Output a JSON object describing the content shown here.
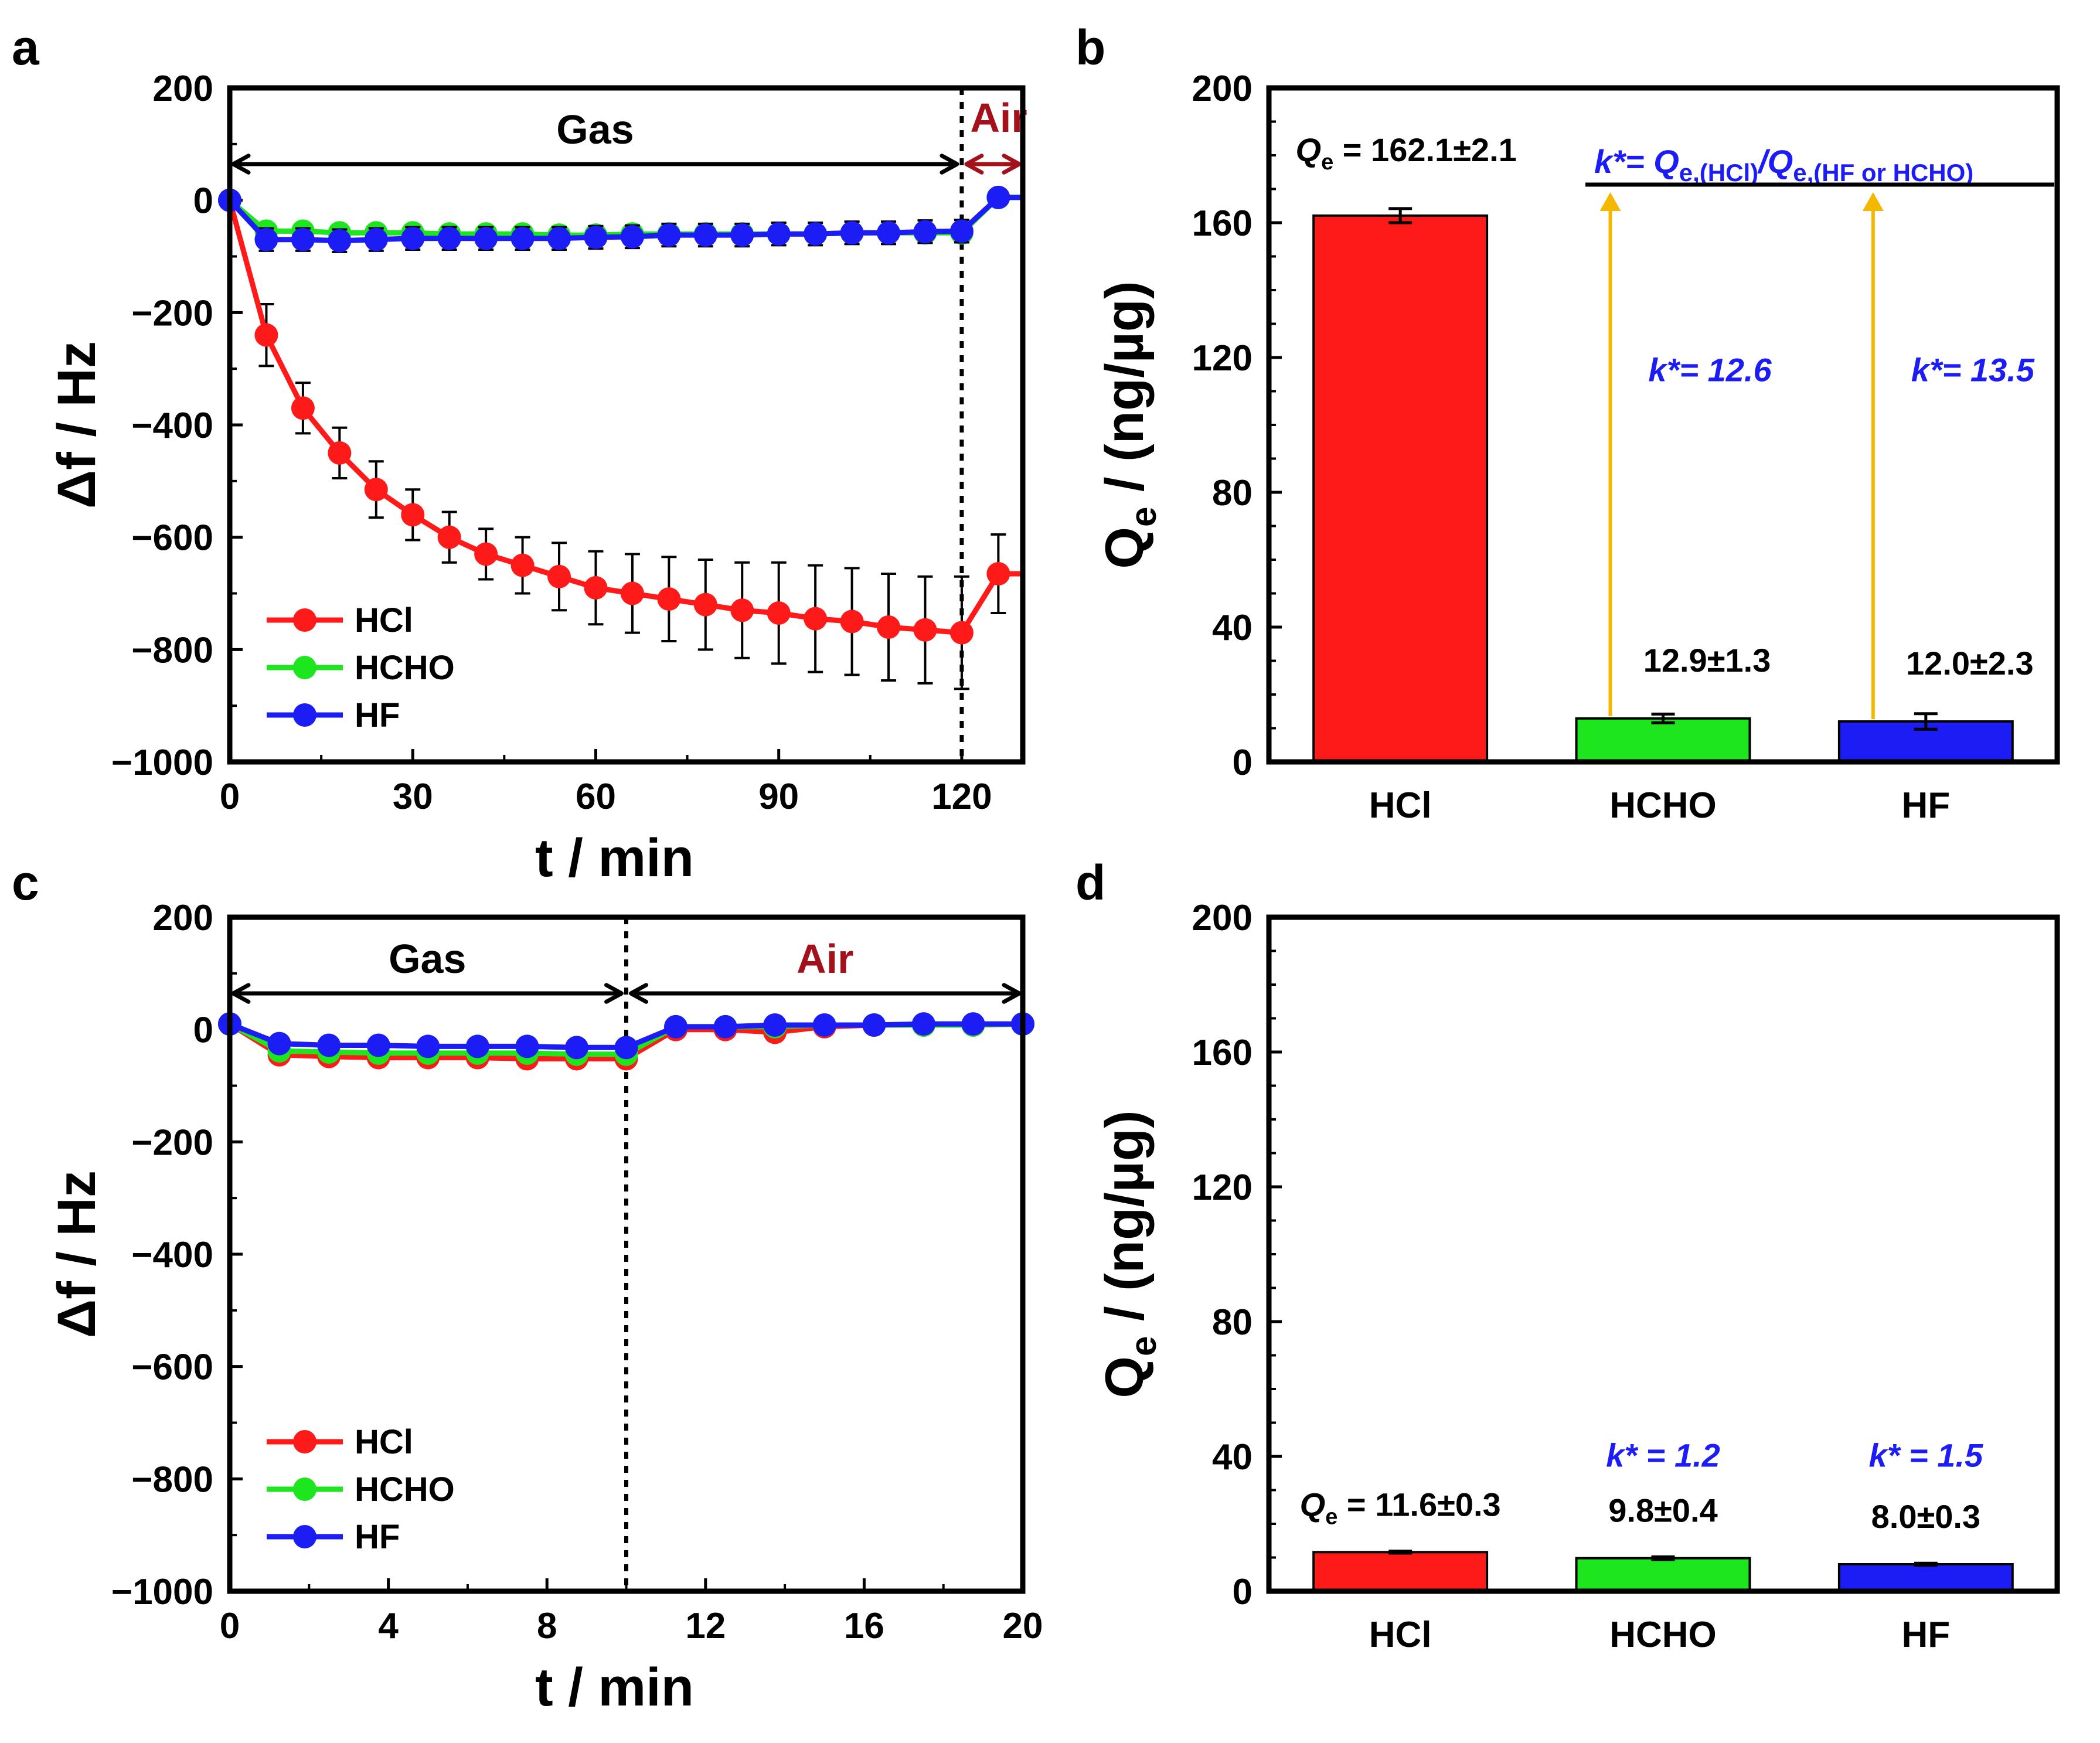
{
  "chart_data": [
    {
      "id": "a",
      "panel_label": "a",
      "type": "line",
      "xlabel": "t / min",
      "ylabel": "Δf / Hz",
      "xlim": [
        0,
        130
      ],
      "ylim": [
        -1000,
        200
      ],
      "xticks": [
        0,
        30,
        60,
        90,
        120
      ],
      "xtick_labels": [
        "0",
        "30",
        "60",
        "90",
        "120"
      ],
      "yticks": [
        200,
        0,
        -200,
        -400,
        -600,
        -800,
        -1000
      ],
      "ytick_labels": [
        "200",
        "0",
        "−200",
        "−400",
        "−600",
        "−800",
        "−1000"
      ],
      "divider_x": 120,
      "gas_label": "Gas",
      "air_label": "Air",
      "gas_range": [
        0,
        120
      ],
      "air_range": [
        120,
        130
      ],
      "legend": [
        "HCl",
        "HCHO",
        "HF"
      ],
      "series": [
        {
          "name": "HCl",
          "color": "#ff1a1a",
          "x": [
            0,
            6,
            12,
            18,
            24,
            30,
            36,
            42,
            48,
            54,
            60,
            66,
            72,
            78,
            84,
            90,
            96,
            102,
            108,
            114,
            120,
            126
          ],
          "y": [
            0,
            -240,
            -370,
            -450,
            -515,
            -560,
            -600,
            -630,
            -650,
            -670,
            -690,
            -700,
            -710,
            -720,
            -730,
            -735,
            -745,
            -750,
            -760,
            -765,
            -770,
            -665
          ],
          "err": [
            0,
            55,
            45,
            45,
            50,
            45,
            45,
            45,
            50,
            60,
            65,
            70,
            75,
            80,
            85,
            90,
            95,
            95,
            95,
            95,
            100,
            70
          ]
        },
        {
          "name": "HCHO",
          "color": "#1ee61e",
          "x": [
            0,
            6,
            12,
            18,
            24,
            30,
            36,
            42,
            48,
            54,
            60,
            66,
            72,
            78,
            84,
            90,
            96,
            102,
            108,
            114,
            120,
            126
          ],
          "y": [
            0,
            -55,
            -55,
            -58,
            -58,
            -58,
            -60,
            -60,
            -60,
            -62,
            -62,
            -60,
            -60,
            -60,
            -60,
            -60,
            -60,
            -58,
            -58,
            -58,
            -58,
            5
          ],
          "err": [
            0,
            10,
            10,
            10,
            10,
            10,
            10,
            10,
            10,
            10,
            10,
            10,
            10,
            10,
            10,
            10,
            10,
            10,
            10,
            10,
            10,
            10
          ]
        },
        {
          "name": "HF",
          "color": "#1c1cf5",
          "x": [
            0,
            6,
            12,
            18,
            24,
            30,
            36,
            42,
            48,
            54,
            60,
            66,
            72,
            78,
            84,
            90,
            96,
            102,
            108,
            114,
            120,
            126
          ],
          "y": [
            0,
            -70,
            -70,
            -72,
            -70,
            -68,
            -68,
            -68,
            -68,
            -68,
            -66,
            -65,
            -62,
            -62,
            -62,
            -60,
            -60,
            -58,
            -58,
            -56,
            -55,
            5
          ],
          "err": [
            0,
            20,
            20,
            20,
            20,
            20,
            20,
            20,
            20,
            20,
            20,
            20,
            20,
            20,
            20,
            20,
            20,
            20,
            20,
            20,
            20,
            10
          ]
        }
      ]
    },
    {
      "id": "b",
      "panel_label": "b",
      "type": "bar",
      "ylabel_main": "Q",
      "ylabel_sub": "e",
      "ylabel_rest": " / (ng/µg)",
      "ylim": [
        0,
        200
      ],
      "yticks": [
        0,
        40,
        80,
        120,
        160,
        200
      ],
      "categories": [
        "HCl",
        "HCHO",
        "HF"
      ],
      "values": [
        162.1,
        12.9,
        12.0
      ],
      "errors": [
        2.1,
        1.3,
        2.3
      ],
      "colors": [
        "#ff1a1a",
        "#1ee61e",
        "#1c1cf5"
      ],
      "labels": [
        {
          "prefix": "Q",
          "sub": "e",
          "text": " = 162.1±2.1"
        },
        {
          "prefix": "",
          "sub": "",
          "text": "12.9±1.3"
        },
        {
          "prefix": "",
          "sub": "",
          "text": "12.0±2.3"
        }
      ],
      "formula": {
        "k": "k*",
        "eq": "= Q",
        "sub1": "e,(HCl)",
        "slash": "/Q",
        "sub2": "e,(HF  or HCHO)"
      },
      "k_values": [
        {
          "category": "HCHO",
          "text": "k*= 12.6"
        },
        {
          "category": "HF",
          "text": "k*= 13.5"
        }
      ],
      "arrow_color": "#f5b800"
    },
    {
      "id": "c",
      "panel_label": "c",
      "type": "line",
      "xlabel": "t / min",
      "ylabel": "Δf / Hz",
      "xlim": [
        0,
        20
      ],
      "ylim": [
        -1000,
        200
      ],
      "xticks": [
        0,
        4,
        8,
        12,
        16,
        20
      ],
      "xtick_labels": [
        "0",
        "4",
        "8",
        "12",
        "16",
        "20"
      ],
      "yticks": [
        200,
        0,
        -200,
        -400,
        -600,
        -800,
        -1000
      ],
      "ytick_labels": [
        "200",
        "0",
        "−200",
        "−400",
        "−600",
        "−800",
        "−1000"
      ],
      "divider_x": 10,
      "gas_label": "Gas",
      "air_label": "Air",
      "gas_range": [
        0,
        10
      ],
      "air_range": [
        10,
        20
      ],
      "legend": [
        "HCl",
        "HCHO",
        "HF"
      ],
      "series": [
        {
          "name": "HCl",
          "color": "#ff1a1a",
          "x": [
            0,
            1.25,
            2.5,
            3.75,
            5,
            6.25,
            7.5,
            8.75,
            10,
            11.25,
            12.5,
            13.75,
            15,
            16.25,
            17.5,
            18.75,
            20
          ],
          "y": [
            10,
            -45,
            -48,
            -50,
            -50,
            -50,
            -52,
            -52,
            -52,
            0,
            0,
            -5,
            5,
            8,
            8,
            8,
            10
          ],
          "err": [
            0,
            8,
            8,
            8,
            8,
            8,
            8,
            8,
            8,
            8,
            8,
            8,
            8,
            8,
            8,
            8,
            8
          ]
        },
        {
          "name": "HCHO",
          "color": "#1ee61e",
          "x": [
            0,
            1.25,
            2.5,
            3.75,
            5,
            6.25,
            7.5,
            8.75,
            10,
            11.25,
            12.5,
            13.75,
            15,
            16.25,
            17.5,
            18.75,
            20
          ],
          "y": [
            10,
            -38,
            -40,
            -42,
            -42,
            -42,
            -42,
            -44,
            -44,
            5,
            5,
            5,
            8,
            8,
            8,
            8,
            10
          ],
          "err": [
            0,
            6,
            6,
            6,
            6,
            6,
            6,
            6,
            6,
            6,
            6,
            6,
            6,
            6,
            6,
            6,
            6
          ]
        },
        {
          "name": "HF",
          "color": "#1c1cf5",
          "x": [
            0,
            1.25,
            2.5,
            3.75,
            5,
            6.25,
            7.5,
            8.75,
            10,
            11.25,
            12.5,
            13.75,
            15,
            16.25,
            17.5,
            18.75,
            20
          ],
          "y": [
            10,
            -25,
            -28,
            -28,
            -30,
            -30,
            -30,
            -32,
            -32,
            5,
            5,
            8,
            8,
            8,
            10,
            10,
            10
          ],
          "err": [
            0,
            6,
            6,
            6,
            6,
            6,
            6,
            6,
            6,
            6,
            6,
            6,
            6,
            6,
            6,
            6,
            6
          ]
        }
      ]
    },
    {
      "id": "d",
      "panel_label": "d",
      "type": "bar",
      "ylabel_main": "Q",
      "ylabel_sub": "e",
      "ylabel_rest": " / (ng/µg)",
      "ylim": [
        0,
        200
      ],
      "yticks": [
        0,
        40,
        80,
        120,
        160,
        200
      ],
      "categories": [
        "HCl",
        "HCHO",
        "HF"
      ],
      "values": [
        11.6,
        9.8,
        8.0
      ],
      "errors": [
        0.3,
        0.4,
        0.3
      ],
      "colors": [
        "#ff1a1a",
        "#1ee61e",
        "#1c1cf5"
      ],
      "labels": [
        {
          "prefix": "Q",
          "sub": "e",
          "text": " = 11.6±0.3"
        },
        {
          "prefix": "",
          "sub": "",
          "text": "9.8±0.4"
        },
        {
          "prefix": "",
          "sub": "",
          "text": "8.0±0.3"
        }
      ],
      "k_values": [
        {
          "category": "HCHO",
          "text": "k* = 1.2"
        },
        {
          "category": "HF",
          "text": "k* = 1.5"
        }
      ]
    }
  ]
}
